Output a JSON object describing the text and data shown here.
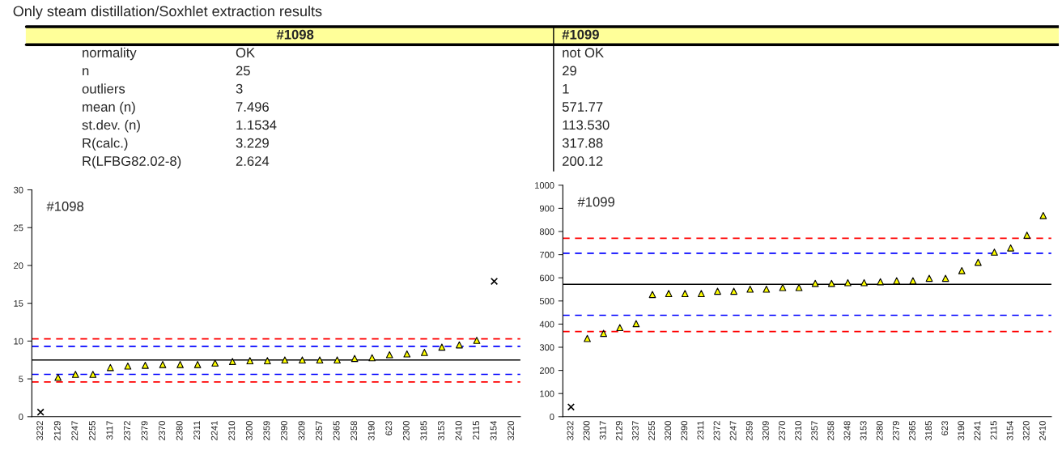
{
  "chart_data": [
    {
      "type": "other",
      "title": "Only steam distillation/Soxhlet extraction results",
      "categories": [
        "#1098",
        "#1099"
      ],
      "y_categories": [
        "normality",
        "n",
        "outliers",
        "mean (n)",
        "st.dev. (n)",
        "R(calc.)",
        "R(LFBG82.02-8)"
      ],
      "cell_labels": [
        [
          "OK",
          "not OK"
        ],
        [
          "25",
          "29"
        ],
        [
          "3",
          "1"
        ],
        [
          "7.496",
          "571.77"
        ],
        [
          "1.1534",
          "113.530"
        ],
        [
          "3.229",
          "317.88"
        ],
        [
          "2.624",
          "200.12"
        ]
      ],
      "color": "#ffff99"
    },
    {
      "type": "scatter",
      "annotations": [
        "#1098"
      ],
      "categories": [
        "3232",
        "2129",
        "2247",
        "2255",
        "3117",
        "2372",
        "2379",
        "2370",
        "2380",
        "2311",
        "2241",
        "2310",
        "3200",
        "2359",
        "2390",
        "3209",
        "2357",
        "2365",
        "2358",
        "3190",
        "623",
        "2300",
        "3185",
        "3153",
        "2410",
        "2115",
        "3154",
        "3220"
      ],
      "series": [
        {
          "color": "#ffff00",
          "marker": "triangle",
          "values": [
            null,
            5.2,
            5.6,
            5.6,
            6.5,
            6.7,
            6.8,
            6.9,
            6.9,
            6.9,
            7.1,
            7.3,
            7.4,
            7.4,
            7.5,
            7.5,
            7.5,
            7.5,
            7.7,
            7.8,
            8.2,
            8.3,
            8.5,
            9.2,
            9.5,
            10.1,
            null,
            null
          ]
        },
        {
          "color": "#000000",
          "marker": "cross",
          "values": [
            0.6,
            null,
            null,
            null,
            null,
            null,
            null,
            null,
            null,
            null,
            null,
            null,
            null,
            null,
            null,
            null,
            null,
            null,
            null,
            null,
            null,
            null,
            null,
            null,
            null,
            null,
            17.9,
            null
          ]
        }
      ],
      "ref_lines": [
        {
          "axis": "y",
          "value": 7.496,
          "color": "#000000",
          "line_style": "solid"
        },
        {
          "axis": "y",
          "value": 10.3,
          "color": "#ff0000",
          "line_style": "dashed"
        },
        {
          "axis": "y",
          "value": 9.3,
          "color": "#0000ff",
          "line_style": "dashed"
        },
        {
          "axis": "y",
          "value": 5.6,
          "color": "#0000ff",
          "line_style": "dashed"
        },
        {
          "axis": "y",
          "value": 4.6,
          "color": "#ff0000",
          "line_style": "dashed"
        }
      ],
      "ylim": [
        0,
        30
      ],
      "yticks": [
        0,
        5,
        10,
        15,
        20,
        25,
        30
      ],
      "grid": false
    },
    {
      "type": "scatter",
      "annotations": [
        "#1099"
      ],
      "categories": [
        "3232",
        "2300",
        "3117",
        "2129",
        "3237",
        "2255",
        "3200",
        "2390",
        "2311",
        "2372",
        "2247",
        "2359",
        "3209",
        "2370",
        "2310",
        "2357",
        "2358",
        "3248",
        "3153",
        "2380",
        "2379",
        "2365",
        "3185",
        "623",
        "3190",
        "2241",
        "2115",
        "3154",
        "3220",
        "2410"
      ],
      "series": [
        {
          "color": "#ffff00",
          "marker": "triangle",
          "values": [
            null,
            338,
            360,
            385,
            402,
            528,
            532,
            532,
            532,
            542,
            542,
            551,
            551,
            558,
            558,
            576,
            576,
            579,
            579,
            583,
            587,
            587,
            598,
            598,
            631,
            667,
            711,
            729,
            784,
            869
          ]
        },
        {
          "color": "#000000",
          "marker": "cross",
          "values": [
            42,
            null,
            null,
            null,
            null,
            null,
            null,
            null,
            null,
            null,
            null,
            null,
            null,
            null,
            null,
            null,
            null,
            null,
            null,
            null,
            null,
            null,
            null,
            null,
            null,
            null,
            null,
            null,
            null,
            null
          ]
        }
      ],
      "ref_lines": [
        {
          "axis": "y",
          "value": 571.77,
          "color": "#000000",
          "line_style": "solid"
        },
        {
          "axis": "y",
          "value": 771,
          "color": "#ff0000",
          "line_style": "dashed"
        },
        {
          "axis": "y",
          "value": 706,
          "color": "#0000ff",
          "line_style": "dashed"
        },
        {
          "axis": "y",
          "value": 438,
          "color": "#0000ff",
          "line_style": "dashed"
        },
        {
          "axis": "y",
          "value": 368,
          "color": "#ff0000",
          "line_style": "dashed"
        }
      ],
      "ylim": [
        0,
        1000
      ],
      "yticks": [
        0,
        100,
        200,
        300,
        400,
        500,
        600,
        700,
        800,
        900,
        1000
      ],
      "grid": false
    }
  ]
}
